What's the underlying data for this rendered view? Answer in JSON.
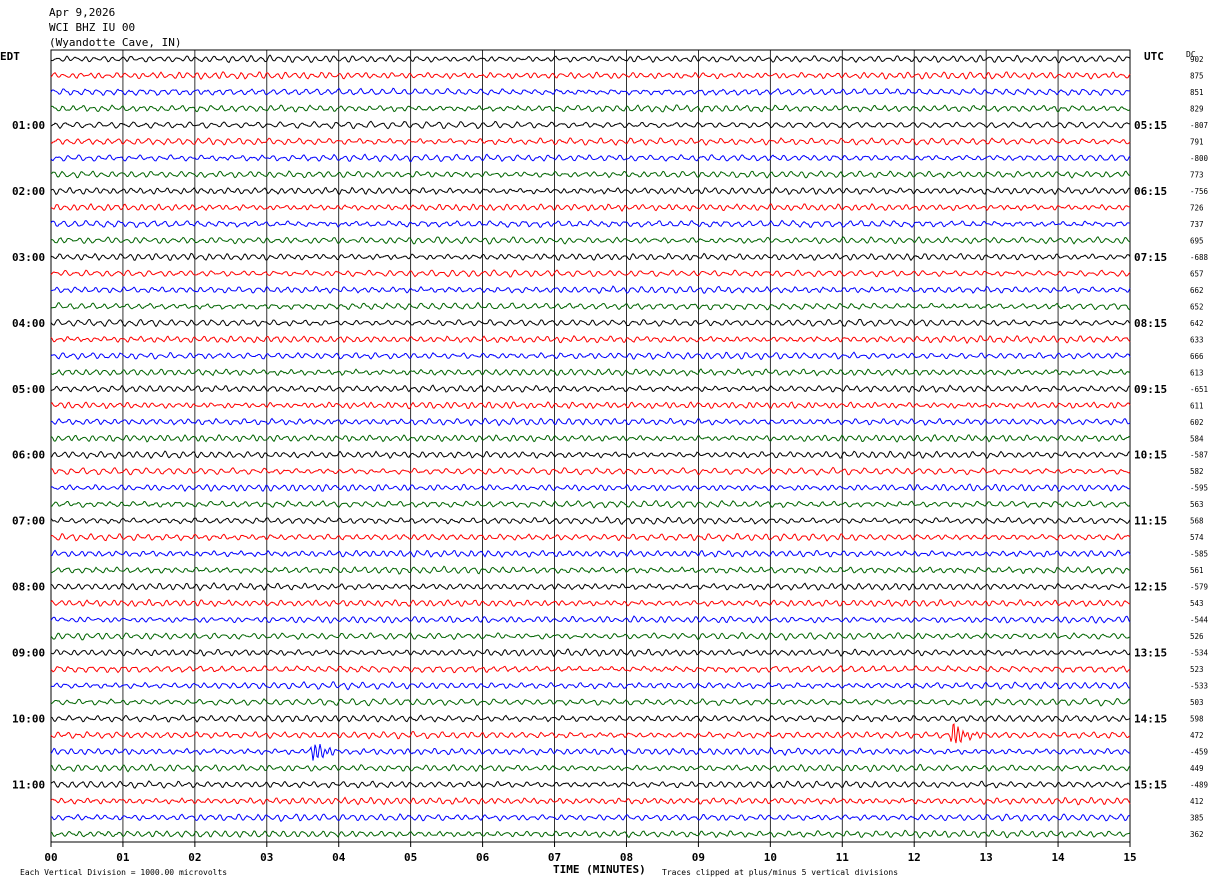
{
  "header": {
    "date": "Apr 9,2026",
    "station": "WCI BHZ IU 00",
    "location": "(Wyandotte Cave, IN)"
  },
  "chart_data": {
    "type": "line",
    "title": "WCI BHZ IU 00",
    "left_axis_label": "EDT",
    "right_axis_label": "UTC",
    "dc_label": "DC",
    "xlabel": "TIME (MINUTES)",
    "xlim": [
      0,
      15
    ],
    "x_ticks": [
      "00",
      "01",
      "02",
      "03",
      "04",
      "05",
      "06",
      "07",
      "08",
      "09",
      "10",
      "11",
      "12",
      "13",
      "14",
      "15"
    ],
    "left_hour_labels": [
      "01:00",
      "02:00",
      "03:00",
      "04:00",
      "05:00",
      "06:00",
      "07:00",
      "08:00",
      "09:00",
      "10:00",
      "11:00"
    ],
    "right_hour_labels": [
      "05:15",
      "06:15",
      "07:15",
      "08:15",
      "09:15",
      "10:15",
      "11:15",
      "12:15",
      "13:15",
      "14:15",
      "15:15"
    ],
    "trace_colors": [
      "#000000",
      "#ff0000",
      "#0000ff",
      "#006400"
    ],
    "dc_offsets": [
      "902",
      "875",
      "851",
      "829",
      "-807",
      "791",
      "-800",
      "773",
      "-756",
      "726",
      "737",
      "695",
      "-688",
      "657",
      "662",
      "652",
      "642",
      "633",
      "666",
      "613",
      "-651",
      "611",
      "602",
      "584",
      "-587",
      "582",
      "-595",
      "563",
      "568",
      "574",
      "-585",
      "561",
      "-579",
      "543",
      "-544",
      "526",
      "-534",
      "523",
      "-533",
      "503",
      "598",
      "472",
      "-459",
      "449",
      "-489",
      "412",
      "385",
      "362"
    ],
    "events": [
      {
        "trace": 41,
        "minute": 12.55,
        "amp": 2.6
      },
      {
        "trace": 42,
        "minute": 3.65,
        "amp": 2.2
      }
    ],
    "footer_left": "Each Vertical Division = 1000.00 microvolts",
    "footer_right": "Traces clipped at plus/minus 5 vertical divisions"
  }
}
